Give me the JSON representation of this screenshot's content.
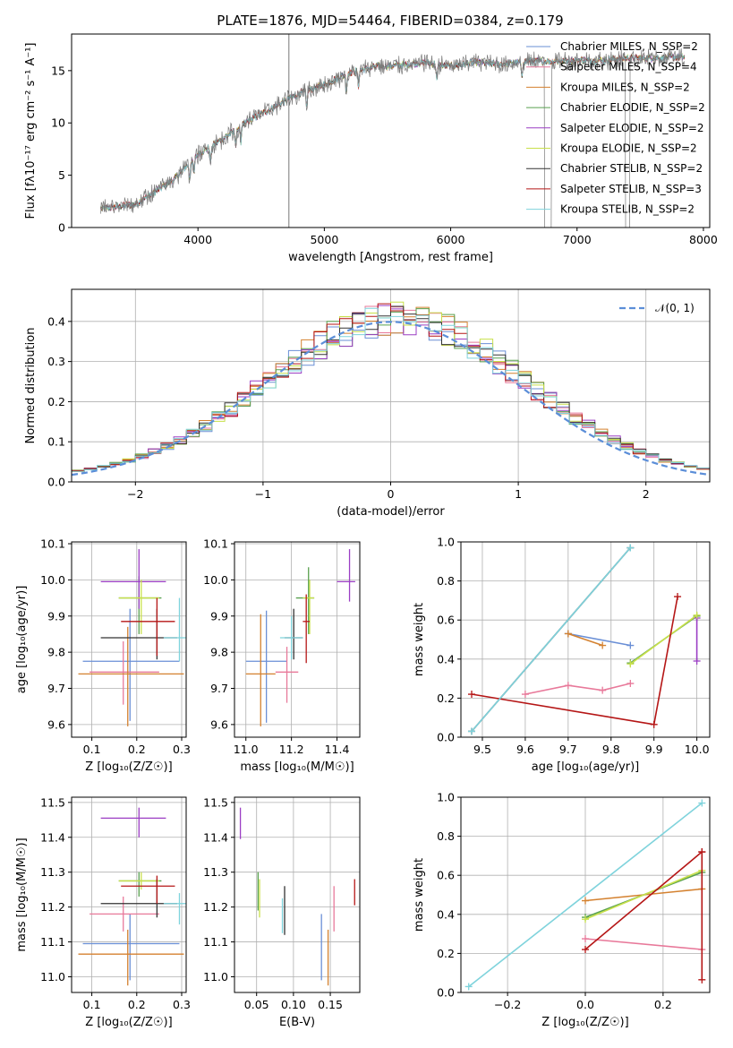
{
  "figure": {
    "title": "PLATE=1876, MJD=54464, FIBERID=0384, z=0.179"
  },
  "chart_data": [
    {
      "id": "spectrum",
      "type": "line",
      "xlabel": "wavelength [Angstrom, rest frame]",
      "ylabel": "Flux [fλ10⁻¹⁷ erg cm⁻² s⁻¹ A⁻¹]",
      "xlim": [
        3000,
        8050
      ],
      "ylim": [
        0,
        18.5
      ],
      "xticks": [
        4000,
        5000,
        6000,
        7000,
        8000
      ],
      "yticks": [
        0,
        5,
        10,
        15
      ],
      "grid": false,
      "legend_position": "top-right",
      "continuum": {
        "x": [
          3230,
          3500,
          3800,
          4000,
          4200,
          4400,
          4600,
          4800,
          5000,
          5200,
          5400,
          5600,
          5800,
          6000,
          6200,
          6400,
          6600,
          6800,
          7000,
          7200,
          7400,
          7600,
          7850
        ],
        "y": [
          1.8,
          2.2,
          4.5,
          7.0,
          8.5,
          10.2,
          11.5,
          12.8,
          13.7,
          14.8,
          15.4,
          15.5,
          15.8,
          15.4,
          15.8,
          15.6,
          15.9,
          15.9,
          16.0,
          16.0,
          16.2,
          16.2,
          16.3
        ]
      },
      "series": [
        {
          "name": "Chabrier MILES, N_SSP=2",
          "color": "#6a8fd6"
        },
        {
          "name": "Salpeter MILES, N_SSP=4",
          "color": "#e8799a"
        },
        {
          "name": "Kroupa MILES, N_SSP=2",
          "color": "#d4812f"
        },
        {
          "name": "Chabrier ELODIE, N_SSP=2",
          "color": "#59a14f"
        },
        {
          "name": "Salpeter ELODIE, N_SSP=2",
          "color": "#9b3ec4"
        },
        {
          "name": "Kroupa ELODIE, N_SSP=2",
          "color": "#c8e04a"
        },
        {
          "name": "Chabrier STELIB, N_SSP=2",
          "color": "#333333"
        },
        {
          "name": "Salpeter STELIB, N_SSP=3",
          "color": "#b51616"
        },
        {
          "name": "Kroupa STELIB, N_SSP=2",
          "color": "#7fd3dc"
        }
      ]
    },
    {
      "id": "residuals",
      "type": "line",
      "xlabel": "(data-model)/error",
      "ylabel": "Normed distribution",
      "xlim": [
        -2.5,
        2.5
      ],
      "ylim": [
        0,
        0.48
      ],
      "xticks": [
        -2,
        -1,
        0,
        1,
        2
      ],
      "yticks": [
        0.0,
        0.1,
        0.2,
        0.3,
        0.4
      ],
      "grid": true,
      "legend_position": "top-right",
      "legend_label": "𝒩(0, 1)",
      "legend_color": "#5b8ed8",
      "histogram": {
        "bin_width": 0.1,
        "mean": 0,
        "sigma": 1,
        "series_count": 9
      }
    },
    {
      "id": "age_vs_Z",
      "type": "scatter",
      "xlabel": "Z [log₁₀(Z/Z☉)]",
      "ylabel": "age  [log₁₀(age/yr)]",
      "xlim": [
        0.055,
        0.31
      ],
      "ylim": [
        9.565,
        10.105
      ],
      "xticks": [
        0.1,
        0.2,
        0.3
      ],
      "yticks": [
        9.6,
        9.7,
        9.8,
        9.9,
        10.0,
        10.1
      ],
      "grid": true,
      "points": [
        {
          "x": 0.185,
          "y": 9.775,
          "xerr": [
            0.08,
            0.295
          ],
          "yerr": [
            9.61,
            9.92
          ],
          "color": "#6a8fd6"
        },
        {
          "x": 0.17,
          "y": 9.745,
          "xerr": [
            0.095,
            0.25
          ],
          "yerr": [
            9.655,
            9.83
          ],
          "color": "#e8799a"
        },
        {
          "x": 0.18,
          "y": 9.74,
          "xerr": [
            0.07,
            0.305
          ],
          "yerr": [
            9.595,
            9.87
          ],
          "color": "#d4812f"
        },
        {
          "x": 0.205,
          "y": 9.95,
          "xerr": [
            0.16,
            0.255
          ],
          "yerr": [
            9.85,
            10.01
          ],
          "color": "#59a14f"
        },
        {
          "x": 0.205,
          "y": 9.995,
          "xerr": [
            0.12,
            0.265
          ],
          "yerr": [
            9.92,
            10.085
          ],
          "color": "#9b3ec4"
        },
        {
          "x": 0.21,
          "y": 9.95,
          "xerr": [
            0.16,
            0.25
          ],
          "yerr": [
            9.85,
            10.0
          ],
          "color": "#c8e04a"
        },
        {
          "x": 0.245,
          "y": 9.84,
          "xerr": [
            0.12,
            0.29
          ],
          "yerr": [
            9.78,
            9.92
          ],
          "color": "#333333"
        },
        {
          "x": 0.245,
          "y": 9.885,
          "xerr": [
            0.165,
            0.285
          ],
          "yerr": [
            9.79,
            9.95
          ],
          "color": "#b51616"
        },
        {
          "x": 0.295,
          "y": 9.84,
          "xerr": [
            0.26,
            0.31
          ],
          "yerr": [
            9.775,
            9.95
          ],
          "color": "#7fd3dc"
        }
      ]
    },
    {
      "id": "age_vs_mass",
      "type": "scatter",
      "xlabel": "mass [log₁₀(M/M☉)]",
      "ylabel": "",
      "xlim": [
        10.95,
        11.5
      ],
      "ylim": [
        9.565,
        10.105
      ],
      "xticks": [
        11.0,
        11.2,
        11.4
      ],
      "yticks": [
        9.6,
        9.7,
        9.8,
        9.9,
        10.0,
        10.1
      ],
      "grid": true,
      "points": [
        {
          "x": 11.09,
          "y": 9.775,
          "xerr": [
            11.0,
            11.18
          ],
          "yerr": [
            9.605,
            9.915
          ],
          "color": "#6a8fd6"
        },
        {
          "x": 11.18,
          "y": 9.745,
          "xerr": [
            11.13,
            11.23
          ],
          "yerr": [
            9.66,
            9.815
          ],
          "color": "#e8799a"
        },
        {
          "x": 11.065,
          "y": 9.74,
          "xerr": [
            11.0,
            11.13
          ],
          "yerr": [
            9.595,
            9.905
          ],
          "color": "#d4812f"
        },
        {
          "x": 11.275,
          "y": 9.95,
          "xerr": [
            11.22,
            11.3
          ],
          "yerr": [
            9.85,
            10.035
          ],
          "color": "#59a14f"
        },
        {
          "x": 11.455,
          "y": 9.995,
          "xerr": [
            11.4,
            11.48
          ],
          "yerr": [
            9.94,
            10.085
          ],
          "color": "#9b3ec4"
        },
        {
          "x": 11.28,
          "y": 9.95,
          "xerr": [
            11.25,
            11.3
          ],
          "yerr": [
            9.85,
            10.0
          ],
          "color": "#c8e04a"
        },
        {
          "x": 11.21,
          "y": 9.84,
          "xerr": [
            11.17,
            11.25
          ],
          "yerr": [
            9.78,
            9.92
          ],
          "color": "#333333"
        },
        {
          "x": 11.265,
          "y": 9.885,
          "xerr": [
            11.25,
            11.28
          ],
          "yerr": [
            9.77,
            9.96
          ],
          "color": "#b51616"
        },
        {
          "x": 11.2,
          "y": 9.84,
          "xerr": [
            11.15,
            11.25
          ],
          "yerr": [
            9.78,
            9.9
          ],
          "color": "#7fd3dc"
        }
      ]
    },
    {
      "id": "weight_vs_age",
      "type": "line",
      "xlabel": "age  [log₁₀(age/yr)]",
      "ylabel": "mass weight",
      "xlim": [
        9.45,
        10.03
      ],
      "ylim": [
        0,
        1.0
      ],
      "xticks": [
        9.5,
        9.6,
        9.7,
        9.8,
        9.9,
        10.0
      ],
      "yticks": [
        0.0,
        0.2,
        0.4,
        0.6,
        0.8,
        1.0
      ],
      "grid": true,
      "series": [
        {
          "color": "#6a8fd6",
          "x": [
            9.7,
            9.845
          ],
          "y": [
            0.53,
            0.47
          ]
        },
        {
          "color": "#e8799a",
          "x": [
            9.6,
            9.7,
            9.78,
            9.845
          ],
          "y": [
            0.22,
            0.265,
            0.24,
            0.275
          ]
        },
        {
          "color": "#d4812f",
          "x": [
            9.7,
            9.78
          ],
          "y": [
            0.53,
            0.47
          ]
        },
        {
          "color": "#59a14f",
          "x": [
            9.845,
            10.0
          ],
          "y": [
            0.38,
            0.62
          ]
        },
        {
          "color": "#9b3ec4",
          "x": [
            10.0,
            10.0
          ],
          "y": [
            0.39,
            0.61
          ]
        },
        {
          "color": "#c8e04a",
          "x": [
            9.845,
            10.0
          ],
          "y": [
            0.375,
            0.625
          ]
        },
        {
          "color": "#333333",
          "x": [
            9.475,
            9.845
          ],
          "y": [
            0.03,
            0.97
          ]
        },
        {
          "color": "#b51616",
          "x": [
            9.475,
            9.9,
            9.955
          ],
          "y": [
            0.22,
            0.065,
            0.72
          ]
        },
        {
          "color": "#7fd3dc",
          "x": [
            9.475,
            9.845
          ],
          "y": [
            0.03,
            0.97
          ]
        }
      ]
    },
    {
      "id": "mass_vs_Z",
      "type": "scatter",
      "xlabel": "Z [log₁₀(Z/Z☉)]",
      "ylabel": "mass [log₁₀(M/M☉)]",
      "xlim": [
        0.055,
        0.31
      ],
      "ylim": [
        10.955,
        11.515
      ],
      "xticks": [
        0.1,
        0.2,
        0.3
      ],
      "yticks": [
        11.0,
        11.1,
        11.2,
        11.3,
        11.4,
        11.5
      ],
      "grid": true,
      "points": [
        {
          "x": 0.185,
          "y": 11.095,
          "xerr": [
            0.08,
            0.295
          ],
          "yerr": [
            10.99,
            11.18
          ],
          "color": "#6a8fd6"
        },
        {
          "x": 0.17,
          "y": 11.18,
          "xerr": [
            0.095,
            0.25
          ],
          "yerr": [
            11.13,
            11.23
          ],
          "color": "#e8799a"
        },
        {
          "x": 0.18,
          "y": 11.065,
          "xerr": [
            0.07,
            0.305
          ],
          "yerr": [
            10.975,
            11.135
          ],
          "color": "#d4812f"
        },
        {
          "x": 0.205,
          "y": 11.275,
          "xerr": [
            0.16,
            0.255
          ],
          "yerr": [
            11.23,
            11.3
          ],
          "color": "#59a14f"
        },
        {
          "x": 0.205,
          "y": 11.455,
          "xerr": [
            0.12,
            0.265
          ],
          "yerr": [
            11.4,
            11.485
          ],
          "color": "#9b3ec4"
        },
        {
          "x": 0.21,
          "y": 11.275,
          "xerr": [
            0.16,
            0.25
          ],
          "yerr": [
            11.25,
            11.3
          ],
          "color": "#c8e04a"
        },
        {
          "x": 0.245,
          "y": 11.21,
          "xerr": [
            0.12,
            0.29
          ],
          "yerr": [
            11.17,
            11.28
          ],
          "color": "#333333"
        },
        {
          "x": 0.245,
          "y": 11.26,
          "xerr": [
            0.165,
            0.285
          ],
          "yerr": [
            11.21,
            11.29
          ],
          "color": "#b51616"
        },
        {
          "x": 0.295,
          "y": 11.21,
          "xerr": [
            0.26,
            0.31
          ],
          "yerr": [
            11.15,
            11.24
          ],
          "color": "#7fd3dc"
        }
      ]
    },
    {
      "id": "mass_vs_ebv",
      "type": "scatter",
      "xlabel": "E(B-V)",
      "ylabel": "",
      "xlim": [
        0.02,
        0.19
      ],
      "ylim": [
        10.955,
        11.515
      ],
      "xticks": [
        0.05,
        0.1,
        0.15
      ],
      "xticklabels": [
        "0.05",
        "0.10",
        "0.15"
      ],
      "yticks": [
        11.0,
        11.1,
        11.2,
        11.3,
        11.4,
        11.5
      ],
      "grid": true,
      "points": [
        {
          "x": 0.138,
          "y": 11.095,
          "yerr": [
            10.99,
            11.18
          ],
          "color": "#6a8fd6"
        },
        {
          "x": 0.155,
          "y": 11.19,
          "yerr": [
            11.13,
            11.26
          ],
          "color": "#e8799a"
        },
        {
          "x": 0.147,
          "y": 11.065,
          "yerr": [
            10.975,
            11.135
          ],
          "color": "#d4812f"
        },
        {
          "x": 0.052,
          "y": 11.25,
          "yerr": [
            11.19,
            11.3
          ],
          "color": "#59a14f"
        },
        {
          "x": 0.028,
          "y": 11.44,
          "yerr": [
            11.395,
            11.485
          ],
          "color": "#9b3ec4"
        },
        {
          "x": 0.054,
          "y": 11.23,
          "yerr": [
            11.17,
            11.28
          ],
          "color": "#c8e04a"
        },
        {
          "x": 0.088,
          "y": 11.2,
          "yerr": [
            11.12,
            11.26
          ],
          "color": "#333333"
        },
        {
          "x": 0.183,
          "y": 11.235,
          "yerr": [
            11.205,
            11.28
          ],
          "color": "#b51616"
        },
        {
          "x": 0.085,
          "y": 11.195,
          "yerr": [
            11.125,
            11.225
          ],
          "color": "#7fd3dc"
        }
      ]
    },
    {
      "id": "weight_vs_Z",
      "type": "line",
      "xlabel": "Z [log₁₀(Z/Z☉)]",
      "ylabel": "mass weight",
      "xlim": [
        -0.32,
        0.32
      ],
      "ylim": [
        0,
        1.0
      ],
      "xticks": [
        -0.2,
        0.0,
        0.2
      ],
      "xticklabels": [
        "−0.2",
        "0.0",
        "0.2"
      ],
      "yticks": [
        0.0,
        0.2,
        0.4,
        0.6,
        0.8,
        1.0
      ],
      "grid": true,
      "series": [
        {
          "color": "#e8799a",
          "x": [
            0.0,
            0.3
          ],
          "y": [
            0.275,
            0.22
          ]
        },
        {
          "color": "#d4812f",
          "x": [
            0.0,
            0.3
          ],
          "y": [
            0.47,
            0.53
          ]
        },
        {
          "color": "#59a14f",
          "x": [
            0.0,
            0.3
          ],
          "y": [
            0.385,
            0.615
          ]
        },
        {
          "color": "#c8e04a",
          "x": [
            0.0,
            0.3
          ],
          "y": [
            0.375,
            0.625
          ]
        },
        {
          "color": "#b51616",
          "x": [
            0.0,
            0.3
          ],
          "y": [
            0.22,
            0.72
          ]
        },
        {
          "color": "#b51616",
          "x": [
            0.3,
            0.3
          ],
          "y": [
            0.065,
            0.72
          ]
        },
        {
          "color": "#7fd3dc",
          "x": [
            -0.3,
            0.3
          ],
          "y": [
            0.03,
            0.97
          ]
        }
      ]
    }
  ]
}
